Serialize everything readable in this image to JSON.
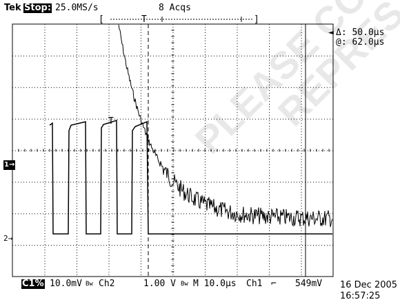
{
  "header": {
    "brand": "Tek",
    "run_state": "Stop:",
    "sample_rate": "25.0MS/s",
    "acquisitions": "8 Acqs",
    "trigger_marker": "T"
  },
  "cursors": {
    "delta": "Δ: 50.0µs",
    "at": "@: 62.0µs"
  },
  "channel_markers": {
    "ch1": "1→",
    "ch2": "2→"
  },
  "waveform_trigger_label": "T",
  "status_bar": {
    "ch1_badge": "C1%",
    "ch1_scale": "10.0mV",
    "ch2_label": "Ch2",
    "ch2_scale": "1.00 V",
    "timebase": "M 10.0µs",
    "trigger_source": "Ch1",
    "trigger_slope_icon": "falling-edge-icon",
    "trigger_level": "549mV"
  },
  "datetime": {
    "date": "16 Dec 2005",
    "time": "16:57:25"
  },
  "watermark": [
    "PLEASE CO",
    "REPRES"
  ],
  "colors": {
    "trace": "#000000",
    "grid": "#000000",
    "background": "#ffffff",
    "watermark": "#e8e8e8"
  }
}
